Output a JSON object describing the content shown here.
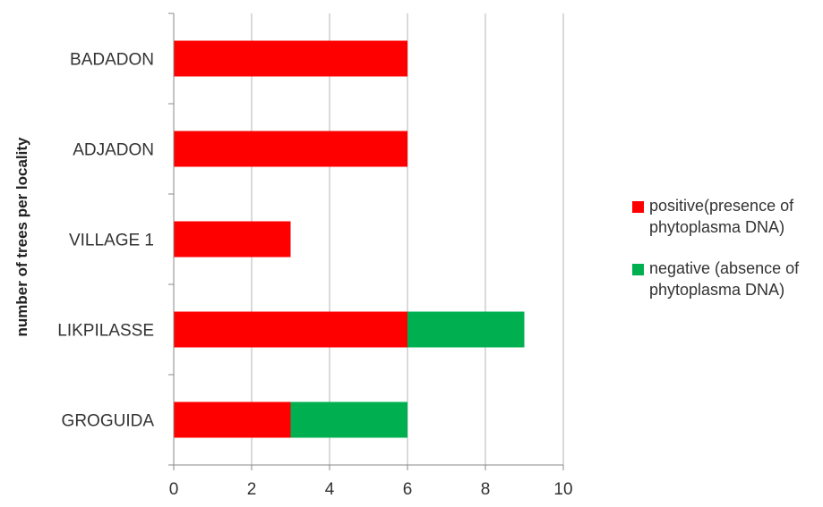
{
  "chart_data": {
    "type": "bar",
    "orientation": "horizontal",
    "stacked": true,
    "categories": [
      "BADADON",
      "ADJADON",
      "VILLAGE 1",
      "LIKPILASSE",
      "GROGUIDA"
    ],
    "series": [
      {
        "name": "positive(presence of phytoplasma DNA)",
        "color": "#ff0000",
        "values": [
          6,
          6,
          3,
          6,
          3
        ]
      },
      {
        "name": "negative (absence of phytoplasma DNA)",
        "color": "#00b050",
        "values": [
          0,
          0,
          0,
          3,
          3
        ]
      }
    ],
    "title": "",
    "xlabel": "",
    "ylabel": "number of trees per locality",
    "xlim": [
      0,
      10
    ],
    "xticks": [
      "0",
      "2",
      "4",
      "6",
      "8",
      "10"
    ],
    "grid": "vertical",
    "legend_position": "right"
  }
}
